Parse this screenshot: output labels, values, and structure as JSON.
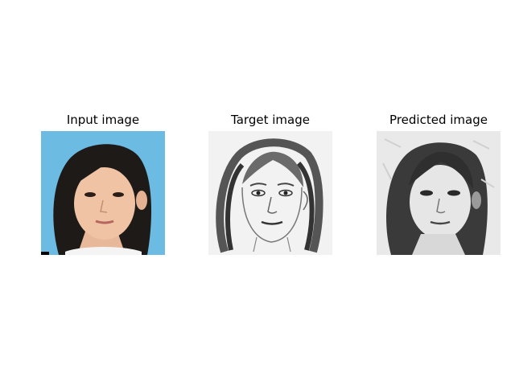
{
  "figure": {
    "panels": [
      {
        "title": "Input image",
        "kind": "photo",
        "background": "#6bbbe3"
      },
      {
        "title": "Target image",
        "kind": "sketch",
        "background": "#f2f2f2"
      },
      {
        "title": "Predicted image",
        "kind": "generated-sketch",
        "background": "#e9e9e9"
      }
    ]
  }
}
